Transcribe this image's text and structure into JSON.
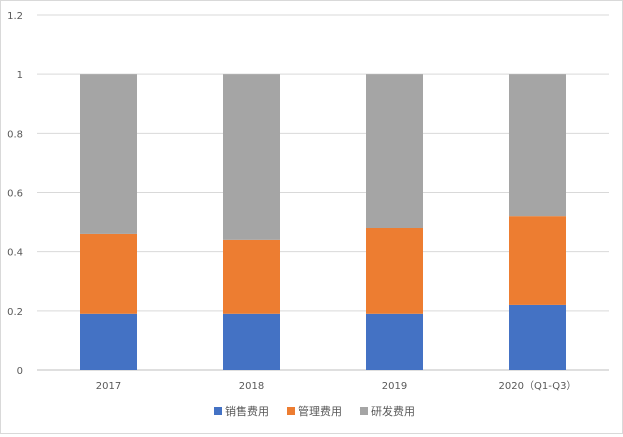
{
  "chart_data": {
    "type": "bar",
    "stacked": true,
    "title": "",
    "xlabel": "",
    "ylabel": "",
    "categories": [
      "2017",
      "2018",
      "2019",
      "2020（Q1-Q3）"
    ],
    "series": [
      {
        "name": "销售费用",
        "values": [
          0.19,
          0.19,
          0.19,
          0.22
        ],
        "color": "#4472C4"
      },
      {
        "name": "管理费用",
        "values": [
          0.27,
          0.25,
          0.29,
          0.3
        ],
        "color": "#ED7D31"
      },
      {
        "name": "研发费用",
        "values": [
          0.54,
          0.56,
          0.52,
          0.48
        ],
        "color": "#A5A5A5"
      }
    ],
    "ylim": [
      0,
      1.2
    ],
    "yticks": [
      "0",
      "0.2",
      "0.4",
      "0.6",
      "0.8",
      "1",
      "1.2"
    ],
    "grid": true,
    "legend_position": "bottom"
  }
}
